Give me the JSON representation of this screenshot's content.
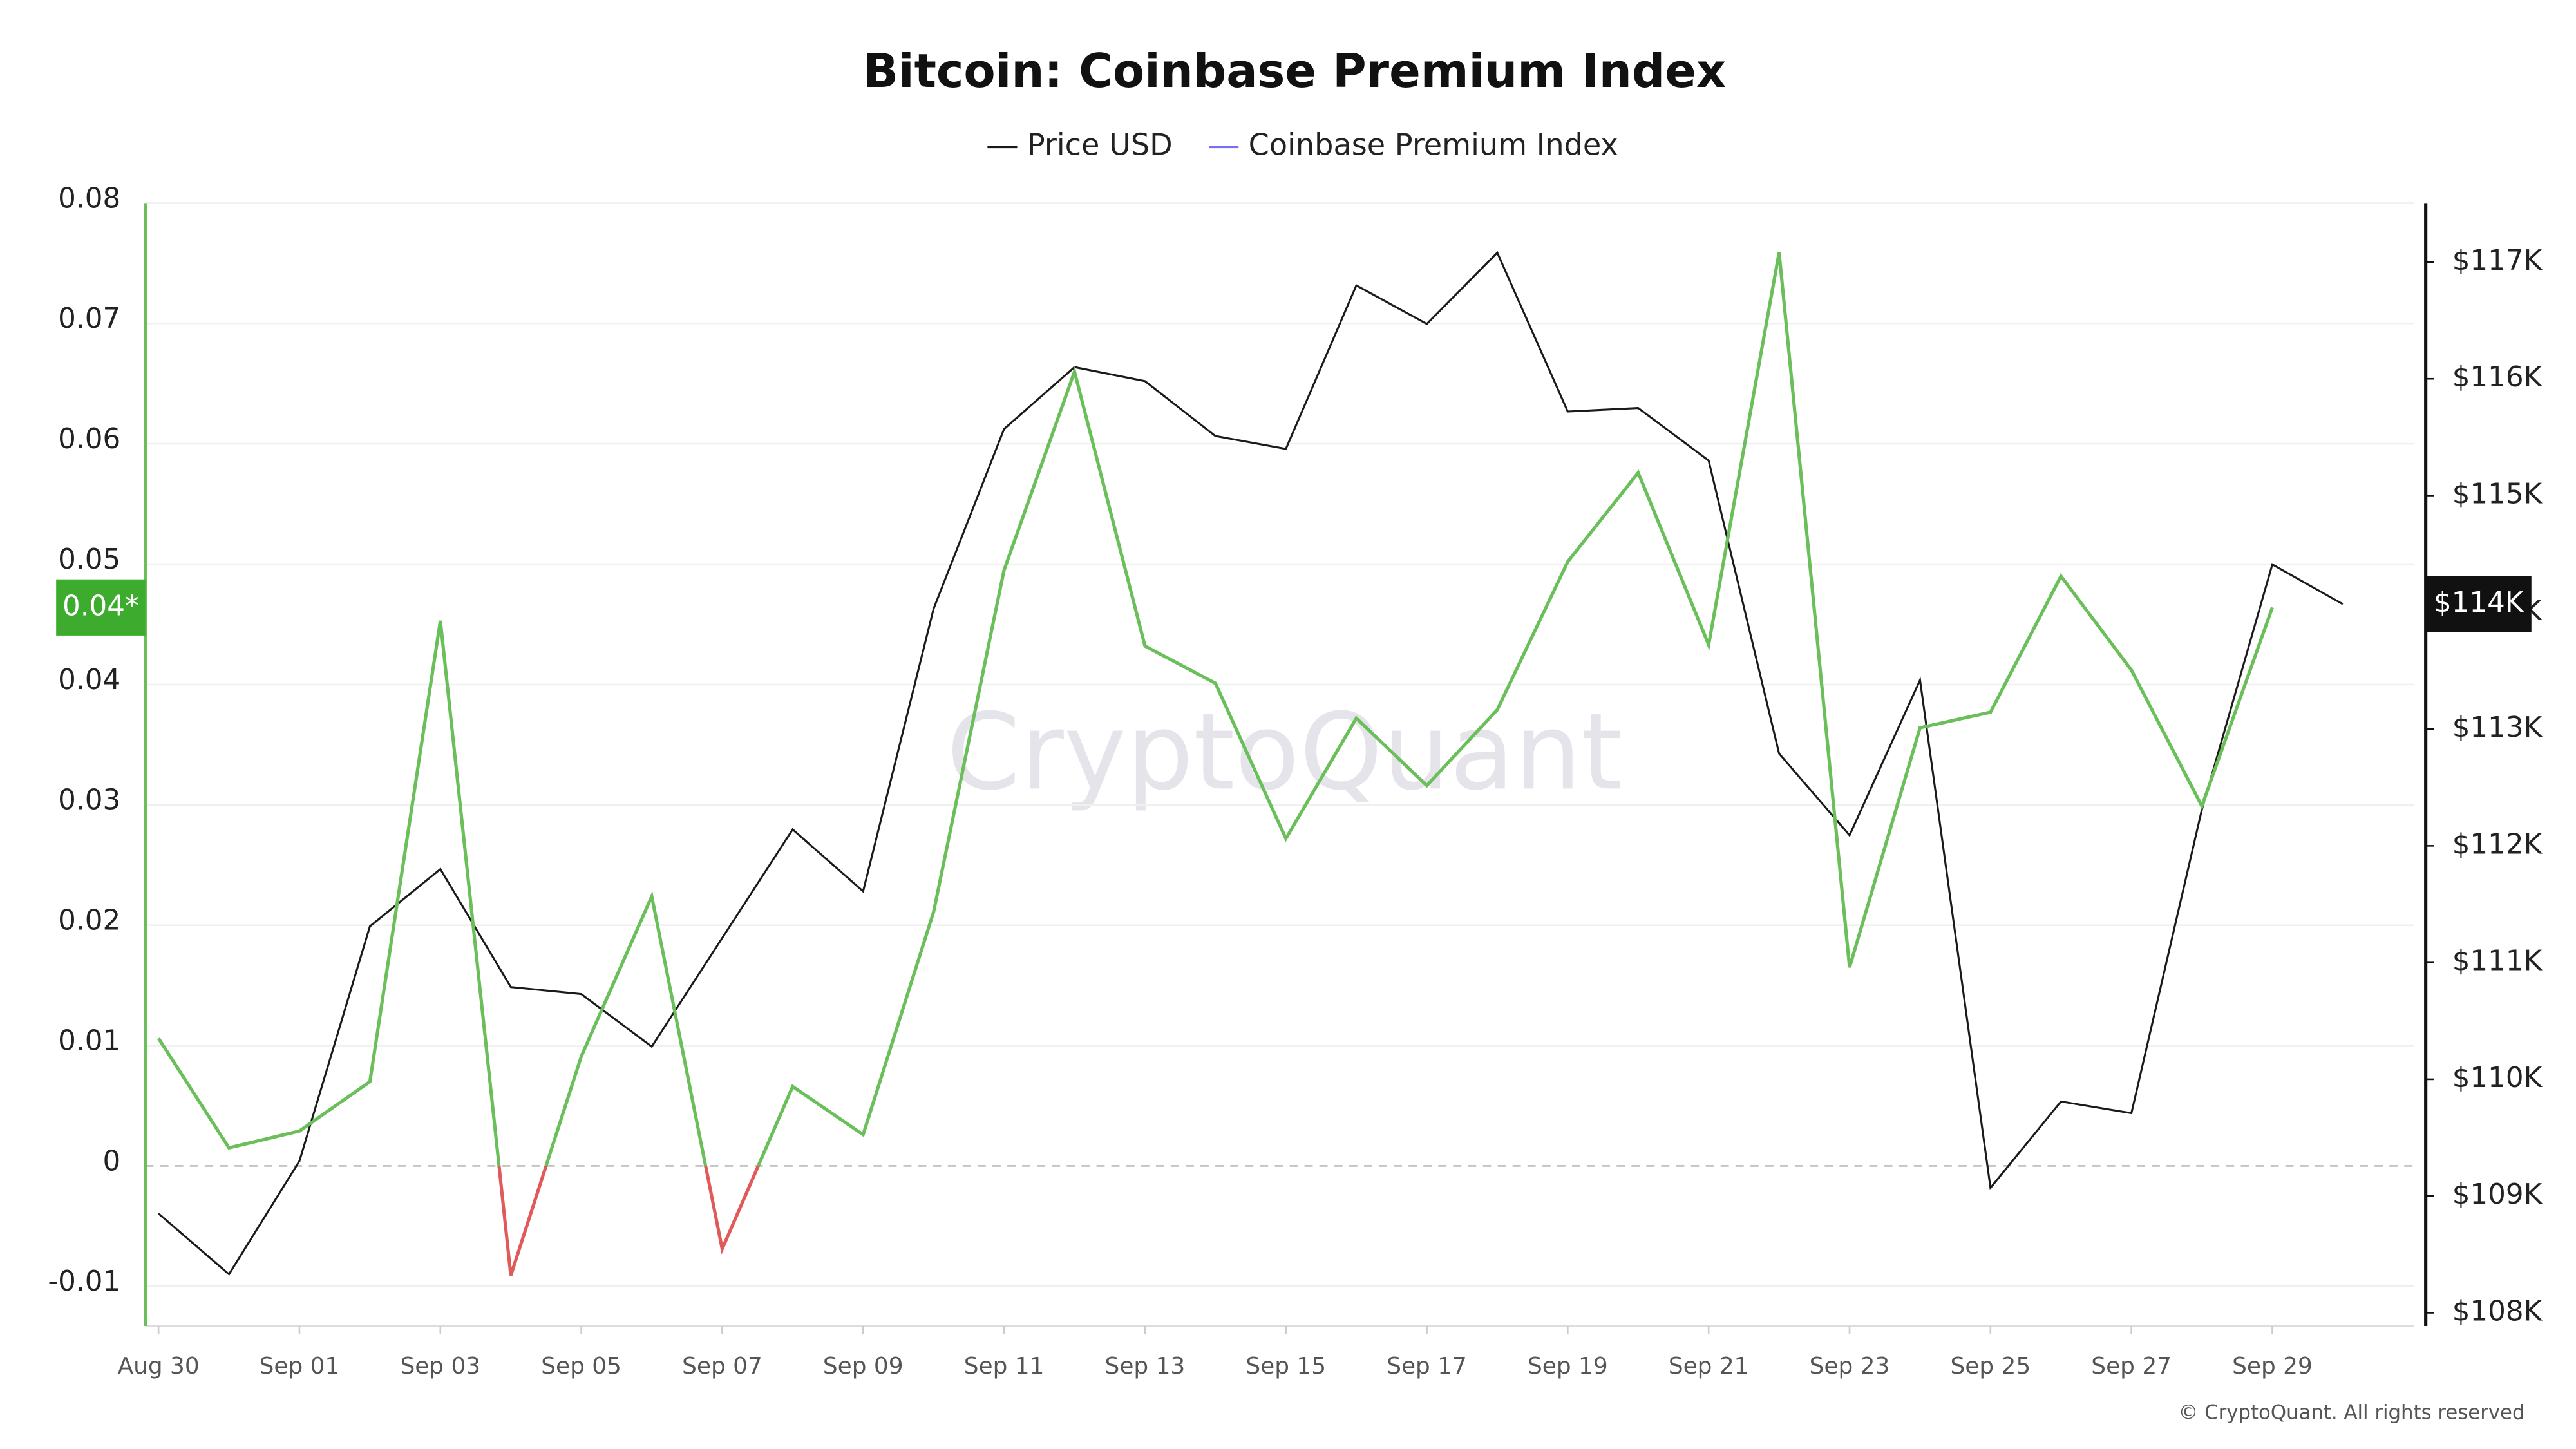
{
  "chart_data": {
    "type": "line",
    "title": "Bitcoin: Coinbase Premium Index",
    "watermark": "CryptoQuant",
    "footer": "© CryptoQuant. All rights reserved",
    "left_badge": "0.04*",
    "right_badge": "$114K",
    "categories": [
      "Aug 30",
      null,
      "Sep 01",
      null,
      "Sep 03",
      null,
      "Sep 05",
      null,
      "Sep 07",
      null,
      "Sep 09",
      null,
      "Sep 11",
      null,
      "Sep 13",
      null,
      "Sep 15",
      null,
      "Sep 17",
      null,
      "Sep 19",
      null,
      "Sep 21",
      null,
      "Sep 23",
      null,
      "Sep 25",
      null,
      "Sep 27",
      null,
      "Sep 29",
      null
    ],
    "series": [
      {
        "name": "Price USD",
        "color": "#1a1a1a",
        "axis": "y2",
        "values": [
          108850,
          108330,
          109300,
          111310,
          111800,
          110790,
          110730,
          110280,
          111210,
          112140,
          111610,
          114030,
          115570,
          116100,
          115980,
          115510,
          115400,
          116800,
          116470,
          117080,
          115720,
          115750,
          115300,
          112790,
          112090,
          113420,
          109070,
          109810,
          109710,
          112310,
          114410,
          114070
        ]
      },
      {
        "name": "Coinbase Premium Index",
        "color": "#7a6ff0",
        "line_color": "#6abf5a",
        "negative_color": "#e05a5a",
        "values": [
          0.0106,
          0.0015,
          0.0029,
          0.007,
          0.0453,
          -0.0091,
          0.0091,
          0.0224,
          -0.0069,
          0.0066,
          0.0026,
          0.0211,
          0.0495,
          0.066,
          0.0432,
          0.0401,
          0.0272,
          0.0372,
          0.0316,
          0.0379,
          0.0502,
          0.0576,
          0.0433,
          0.0759,
          0.0165,
          0.0364,
          0.0377,
          0.049,
          0.0412,
          0.0299,
          0.0464,
          null
        ]
      }
    ],
    "ylim": [
      -0.0133,
      0.08
    ],
    "yticks": [
      -0.01,
      0,
      0.01,
      0.02,
      0.03,
      0.04,
      0.05,
      0.06,
      0.07,
      0.08
    ],
    "y2lim": [
      107887,
      117505
    ],
    "y2ticks": [
      {
        "value": 108000,
        "label": "$108K"
      },
      {
        "value": 109000,
        "label": "$109K"
      },
      {
        "value": 110000,
        "label": "$110K"
      },
      {
        "value": 111000,
        "label": "$111K"
      },
      {
        "value": 112000,
        "label": "$112K"
      },
      {
        "value": 113000,
        "label": "$113K"
      },
      {
        "value": 114000,
        "label": "$114K"
      },
      {
        "value": 115000,
        "label": "$115K"
      },
      {
        "value": 116000,
        "label": "$116K"
      },
      {
        "value": 117000,
        "label": "$117K"
      }
    ],
    "grid": true
  }
}
